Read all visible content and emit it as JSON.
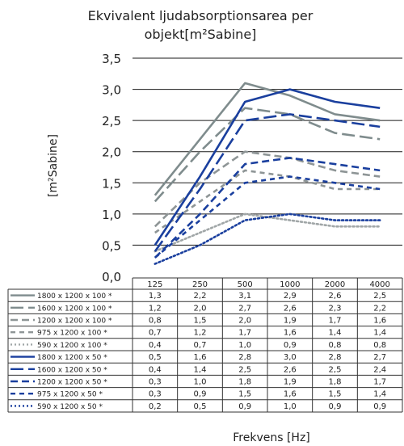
{
  "chart_data": {
    "type": "line",
    "title": "Ekvivalent ljudabsorptionsarea per objekt[m²Sabine]",
    "title_lines": [
      "Ekvivalent ljudabsorptionsarea per",
      "objekt[m²Sabine]"
    ],
    "ylabel": "[m²Sabine]",
    "xlabel": "Frekvens [Hz]",
    "ylim": [
      0,
      3.5
    ],
    "yticks": [
      "0,0",
      "0,5",
      "1,0",
      "1,5",
      "2,0",
      "2,5",
      "3,0",
      "3,5"
    ],
    "categories": [
      "125",
      "250",
      "500",
      "1000",
      "2000",
      "4000"
    ],
    "grid": "horizontal",
    "legend": "data-table-below",
    "series": [
      {
        "name": "1800 x 1200 x 100 *",
        "values": [
          1.3,
          2.2,
          3.1,
          2.9,
          2.6,
          2.5
        ],
        "labels": [
          "1,3",
          "2,2",
          "3,1",
          "2,9",
          "2,6",
          "2,5"
        ],
        "color": "#7f8c8d",
        "dash": "solid"
      },
      {
        "name": "1600 x 1200 x 100 *",
        "values": [
          1.2,
          2.0,
          2.7,
          2.6,
          2.3,
          2.2
        ],
        "labels": [
          "1,2",
          "2,0",
          "2,7",
          "2,6",
          "2,3",
          "2,2"
        ],
        "color": "#7f8c8d",
        "dash": "longdash"
      },
      {
        "name": "1200 x 1200 x 100 *",
        "values": [
          0.8,
          1.5,
          2.0,
          1.9,
          1.7,
          1.6
        ],
        "labels": [
          "0,8",
          "1,5",
          "2,0",
          "1,9",
          "1,7",
          "1,6"
        ],
        "color": "#8e9596",
        "dash": "dash"
      },
      {
        "name": "975 x 1200 x 100 *",
        "values": [
          0.7,
          1.2,
          1.7,
          1.6,
          1.4,
          1.4
        ],
        "labels": [
          "0,7",
          "1,2",
          "1,7",
          "1,6",
          "1,4",
          "1,4"
        ],
        "color": "#8e9596",
        "dash": "shortdash"
      },
      {
        "name": "590 x 1200 x 100 *",
        "values": [
          0.4,
          0.7,
          1.0,
          0.9,
          0.8,
          0.8
        ],
        "labels": [
          "0,4",
          "0,7",
          "1,0",
          "0,9",
          "0,8",
          "0,8"
        ],
        "color": "#a0a6a7",
        "dash": "dot"
      },
      {
        "name": "1800 x 1200 x 50 *",
        "values": [
          0.5,
          1.6,
          2.8,
          3.0,
          2.8,
          2.7
        ],
        "labels": [
          "0,5",
          "1,6",
          "2,8",
          "3,0",
          "2,8",
          "2,7"
        ],
        "color": "#1a3f9e",
        "dash": "solid"
      },
      {
        "name": "1600 x 1200 x 50 *",
        "values": [
          0.4,
          1.4,
          2.5,
          2.6,
          2.5,
          2.4
        ],
        "labels": [
          "0,4",
          "1,4",
          "2,5",
          "2,6",
          "2,5",
          "2,4"
        ],
        "color": "#1a3f9e",
        "dash": "longdash"
      },
      {
        "name": "1200 x 1200 x 50 *",
        "values": [
          0.3,
          1.0,
          1.8,
          1.9,
          1.8,
          1.7
        ],
        "labels": [
          "0,3",
          "1,0",
          "1,8",
          "1,9",
          "1,8",
          "1,7"
        ],
        "color": "#1a3f9e",
        "dash": "dash"
      },
      {
        "name": "975 x 1200 x 50 *",
        "values": [
          0.3,
          0.9,
          1.5,
          1.6,
          1.5,
          1.4
        ],
        "labels": [
          "0,3",
          "0,9",
          "1,5",
          "1,6",
          "1,5",
          "1,4"
        ],
        "color": "#1a3f9e",
        "dash": "shortdash"
      },
      {
        "name": "590 x 1200 x 50 *",
        "values": [
          0.2,
          0.5,
          0.9,
          1.0,
          0.9,
          0.9
        ],
        "labels": [
          "0,2",
          "0,5",
          "0,9",
          "1,0",
          "0,9",
          "0,9"
        ],
        "color": "#1a3f9e",
        "dash": "dot"
      }
    ]
  }
}
